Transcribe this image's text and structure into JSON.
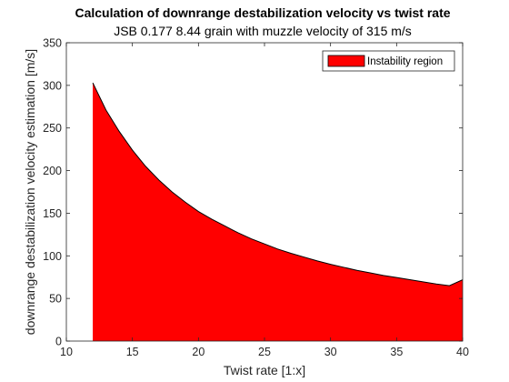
{
  "chart_data": {
    "type": "area",
    "title": "Calculation of downrange destabilization velocity vs twist rate",
    "subtitle": "JSB 0.177 8.44 grain with muzzle velocity of 315 m/s",
    "xlabel": "Twist rate [1:x]",
    "ylabel": "downrange destabilization velocity estimation [m/s]",
    "xlim": [
      10,
      40
    ],
    "ylim": [
      0,
      350
    ],
    "xticks": [
      10,
      15,
      20,
      25,
      30,
      35,
      40
    ],
    "yticks": [
      0,
      50,
      100,
      150,
      200,
      250,
      300,
      350
    ],
    "grid": false,
    "legend_position": "top-right",
    "series": [
      {
        "name": "Instability region",
        "color": "#ff0000",
        "x": [
          12,
          13,
          14,
          15,
          16,
          17,
          18,
          19,
          20,
          21,
          22,
          23,
          24,
          25,
          26,
          27,
          28,
          29,
          30,
          31,
          32,
          33,
          34,
          35,
          36,
          37,
          38,
          39,
          40
        ],
        "y": [
          303,
          271,
          246,
          224,
          205,
          189,
          175,
          163,
          152,
          143,
          135,
          127,
          120,
          114,
          108,
          103,
          98.5,
          94,
          90,
          86.5,
          83,
          80,
          77,
          74.5,
          72,
          69.5,
          67,
          65,
          72
        ]
      }
    ]
  }
}
